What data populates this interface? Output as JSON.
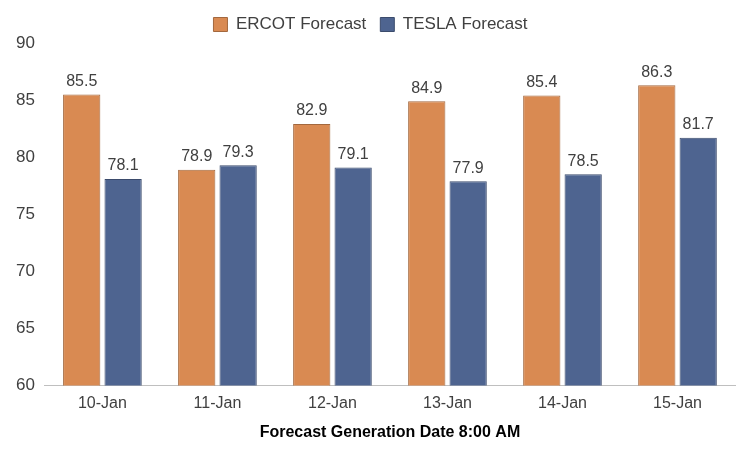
{
  "chart_data": {
    "type": "bar",
    "categories": [
      "10-Jan",
      "11-Jan",
      "12-Jan",
      "13-Jan",
      "14-Jan",
      "15-Jan"
    ],
    "series": [
      {
        "name": "ERCOT Forecast",
        "color": "#D98A52",
        "values": [
          85.5,
          78.9,
          82.9,
          84.9,
          85.4,
          86.3
        ]
      },
      {
        "name": "TESLA Forecast",
        "color": "#4E6490",
        "values": [
          78.1,
          79.3,
          79.1,
          77.9,
          78.5,
          81.7
        ]
      }
    ],
    "x_label": "Forecast Generation Date 8:00 AM",
    "ylim": [
      60,
      90
    ],
    "yticks": [
      60,
      65,
      70,
      75,
      80,
      85,
      90
    ],
    "grid": false,
    "legend": "top",
    "data_labels": true
  }
}
